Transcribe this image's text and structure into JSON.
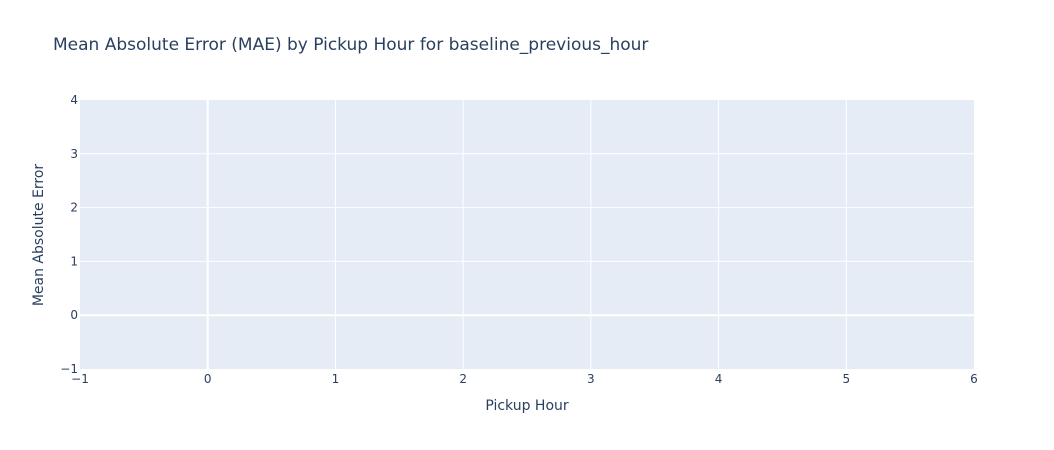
{
  "chart_data": {
    "type": "line",
    "title": "Mean Absolute Error (MAE) by Pickup Hour for baseline_previous_hour",
    "xlabel": "Pickup Hour",
    "ylabel": "Mean Absolute Error",
    "xlim": [
      -1,
      6
    ],
    "ylim": [
      -1,
      4
    ],
    "x_ticks": [
      "−1",
      "0",
      "1",
      "2",
      "3",
      "4",
      "5",
      "6"
    ],
    "y_ticks": [
      "−1",
      "0",
      "1",
      "2",
      "3",
      "4"
    ],
    "x_tick_values": [
      -1,
      0,
      1,
      2,
      3,
      4,
      5,
      6
    ],
    "y_tick_values": [
      -1,
      0,
      1,
      2,
      3,
      4
    ],
    "series": [],
    "grid": true,
    "plot_background": "#e5ecf6",
    "text_color": "#2a3f5f"
  }
}
